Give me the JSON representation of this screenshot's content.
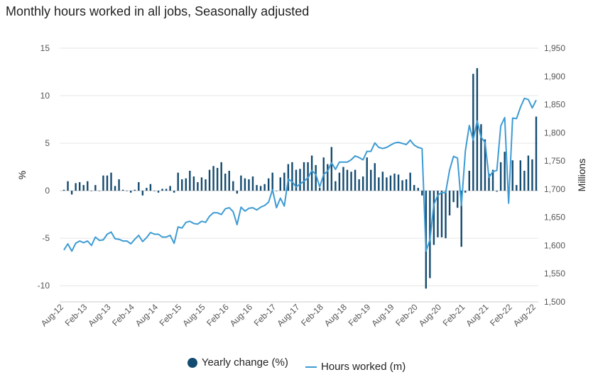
{
  "chart_data": {
    "type": "bar+line",
    "title": "Monthly hours worked in all jobs, Seasonally adjusted",
    "ylabel_left": "%",
    "ylabel_right": "Millions",
    "ylim_left": [
      -11.7,
      15
    ],
    "ylim_right": [
      1500,
      1950
    ],
    "yticks_left": [
      "15",
      "10",
      "5",
      "0",
      "-5",
      "-10"
    ],
    "yticks_right": [
      "1,950",
      "1,900",
      "1,850",
      "1,800",
      "1,750",
      "1,700",
      "1,650",
      "1,600",
      "1,550",
      "1,500"
    ],
    "x_start": "Aug-12",
    "x_end": "Aug-22",
    "xtick_labels": [
      "Aug-12",
      "Feb-13",
      "Aug-13",
      "Feb-14",
      "Aug-14",
      "Feb-15",
      "Aug-15",
      "Feb-16",
      "Aug-16",
      "Feb-17",
      "Aug-17",
      "Feb-18",
      "Aug-18",
      "Feb-19",
      "Aug-19",
      "Feb-20",
      "Aug-20",
      "Feb-21",
      "Aug-21",
      "Feb-22",
      "Aug-22"
    ],
    "grid": true,
    "legend_placement": "bottom",
    "colors": {
      "bars": "#134a70",
      "line": "#3d9bd3"
    },
    "series": [
      {
        "name": "Yearly change (%)",
        "type": "bar",
        "axis": "left",
        "values": [
          0.1,
          1.0,
          -0.4,
          0.8,
          0.9,
          0.6,
          1.0,
          0,
          0.6,
          0,
          1.6,
          1.6,
          1.9,
          0.5,
          1.2,
          0.1,
          0,
          -0.2,
          0.1,
          0.9,
          -0.5,
          0.3,
          0.7,
          0,
          -0.2,
          0.2,
          0.2,
          0.5,
          -0.2,
          1.9,
          1.2,
          1.3,
          2.1,
          1.5,
          0.9,
          1.4,
          1.2,
          2.2,
          2.6,
          2.4,
          3.0,
          1.8,
          2.1,
          1.0,
          -0.3,
          1.6,
          1.3,
          1.2,
          1.5,
          0.6,
          0.5,
          0.7,
          1.3,
          1.9,
          0,
          1.4,
          1.9,
          2.8,
          3.0,
          2.2,
          2.3,
          3.0,
          3.0,
          3.7,
          2.7,
          0.3,
          3.5,
          2.8,
          4.6,
          1.0,
          1.9,
          2.5,
          2.2,
          2.0,
          2.2,
          1.2,
          1.5,
          3.5,
          2.2,
          2.9,
          1.4,
          2.0,
          1.4,
          1.6,
          1.8,
          1.7,
          1.1,
          1.2,
          1.9,
          0.6,
          0.3,
          -0.5,
          -10.3,
          -9.2,
          -5.7,
          -4.9,
          -4.9,
          -5.0,
          -2.6,
          -1.2,
          -1.8,
          -5.9,
          -0.2,
          2.1,
          12.3,
          12.9,
          7.0,
          5.4,
          1.8,
          2.2,
          -0.1,
          3.0,
          4.1,
          0.2,
          3.2,
          0.6,
          3.2,
          2.1,
          3.7,
          3.3,
          7.8
        ]
      },
      {
        "name": "Hours worked (m)",
        "type": "line",
        "axis": "right",
        "values": [
          1592,
          1603,
          1590,
          1604,
          1608,
          1605,
          1608,
          1600,
          1615,
          1609,
          1610,
          1620,
          1624,
          1612,
          1611,
          1608,
          1608,
          1603,
          1611,
          1618,
          1607,
          1614,
          1623,
          1620,
          1620,
          1615,
          1615,
          1618,
          1604,
          1633,
          1631,
          1641,
          1643,
          1639,
          1638,
          1643,
          1641,
          1652,
          1658,
          1658,
          1655,
          1665,
          1667,
          1660,
          1637,
          1668,
          1661,
          1666,
          1667,
          1663,
          1668,
          1671,
          1677,
          1699,
          1667,
          1684,
          1670,
          1718,
          1713,
          1704,
          1709,
          1714,
          1720,
          1733,
          1726,
          1704,
          1726,
          1732,
          1747,
          1735,
          1748,
          1748,
          1748,
          1752,
          1759,
          1756,
          1752,
          1767,
          1767,
          1782,
          1774,
          1772,
          1774,
          1778,
          1782,
          1783,
          1781,
          1779,
          1787,
          1778,
          1774,
          1772,
          1590,
          1610,
          1673,
          1689,
          1694,
          1694,
          1734,
          1758,
          1755,
          1671,
          1768,
          1813,
          1787,
          1821,
          1792,
          1783,
          1721,
          1731,
          1733,
          1812,
          1827,
          1675,
          1826,
          1825,
          1845,
          1861,
          1859,
          1844,
          1858
        ]
      }
    ]
  }
}
